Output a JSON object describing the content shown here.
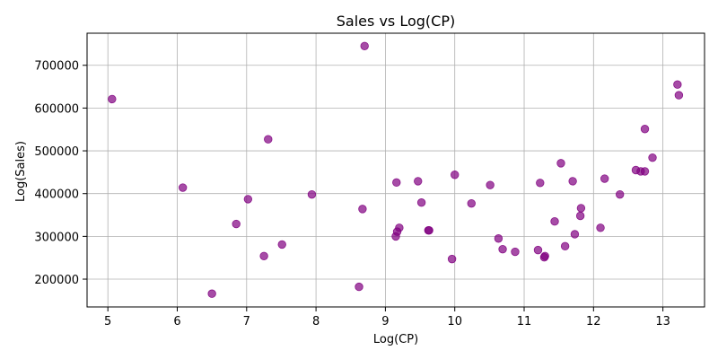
{
  "chart_data": {
    "type": "scatter",
    "title": "Sales vs Log(CP)",
    "xlabel": "Log(CP)",
    "ylabel": "Log(Sales)",
    "xlim": [
      4.7,
      13.6
    ],
    "ylim": [
      135000,
      775000
    ],
    "xticks": [
      5,
      6,
      7,
      8,
      9,
      10,
      11,
      12,
      13
    ],
    "yticks": [
      200000,
      300000,
      400000,
      500000,
      600000,
      700000
    ],
    "grid": true,
    "marker_color": "#800080",
    "points": [
      [
        5.06,
        621000
      ],
      [
        6.08,
        414000
      ],
      [
        6.5,
        166000
      ],
      [
        6.85,
        329000
      ],
      [
        7.02,
        387000
      ],
      [
        7.25,
        254000
      ],
      [
        7.31,
        527000
      ],
      [
        7.51,
        281000
      ],
      [
        7.94,
        398000
      ],
      [
        8.62,
        182000
      ],
      [
        8.67,
        364000
      ],
      [
        8.7,
        745000
      ],
      [
        9.15,
        300000
      ],
      [
        9.16,
        426000
      ],
      [
        9.17,
        311000
      ],
      [
        9.2,
        320000
      ],
      [
        9.47,
        429000
      ],
      [
        9.52,
        379000
      ],
      [
        9.62,
        314000
      ],
      [
        9.63,
        314000
      ],
      [
        9.96,
        247000
      ],
      [
        10.0,
        444000
      ],
      [
        10.24,
        377000
      ],
      [
        10.51,
        420000
      ],
      [
        10.63,
        295000
      ],
      [
        10.69,
        270000
      ],
      [
        10.87,
        264000
      ],
      [
        11.2,
        268000
      ],
      [
        11.23,
        425000
      ],
      [
        11.29,
        251000
      ],
      [
        11.3,
        254000
      ],
      [
        11.44,
        335000
      ],
      [
        11.53,
        471000
      ],
      [
        11.59,
        277000
      ],
      [
        11.7,
        429000
      ],
      [
        11.73,
        305000
      ],
      [
        11.81,
        348000
      ],
      [
        11.82,
        366000
      ],
      [
        12.1,
        320000
      ],
      [
        12.16,
        435000
      ],
      [
        12.38,
        398000
      ],
      [
        12.61,
        455000
      ],
      [
        12.68,
        452000
      ],
      [
        12.74,
        452000
      ],
      [
        12.74,
        551000
      ],
      [
        12.85,
        484000
      ],
      [
        13.21,
        655000
      ],
      [
        13.23,
        630000
      ]
    ]
  }
}
